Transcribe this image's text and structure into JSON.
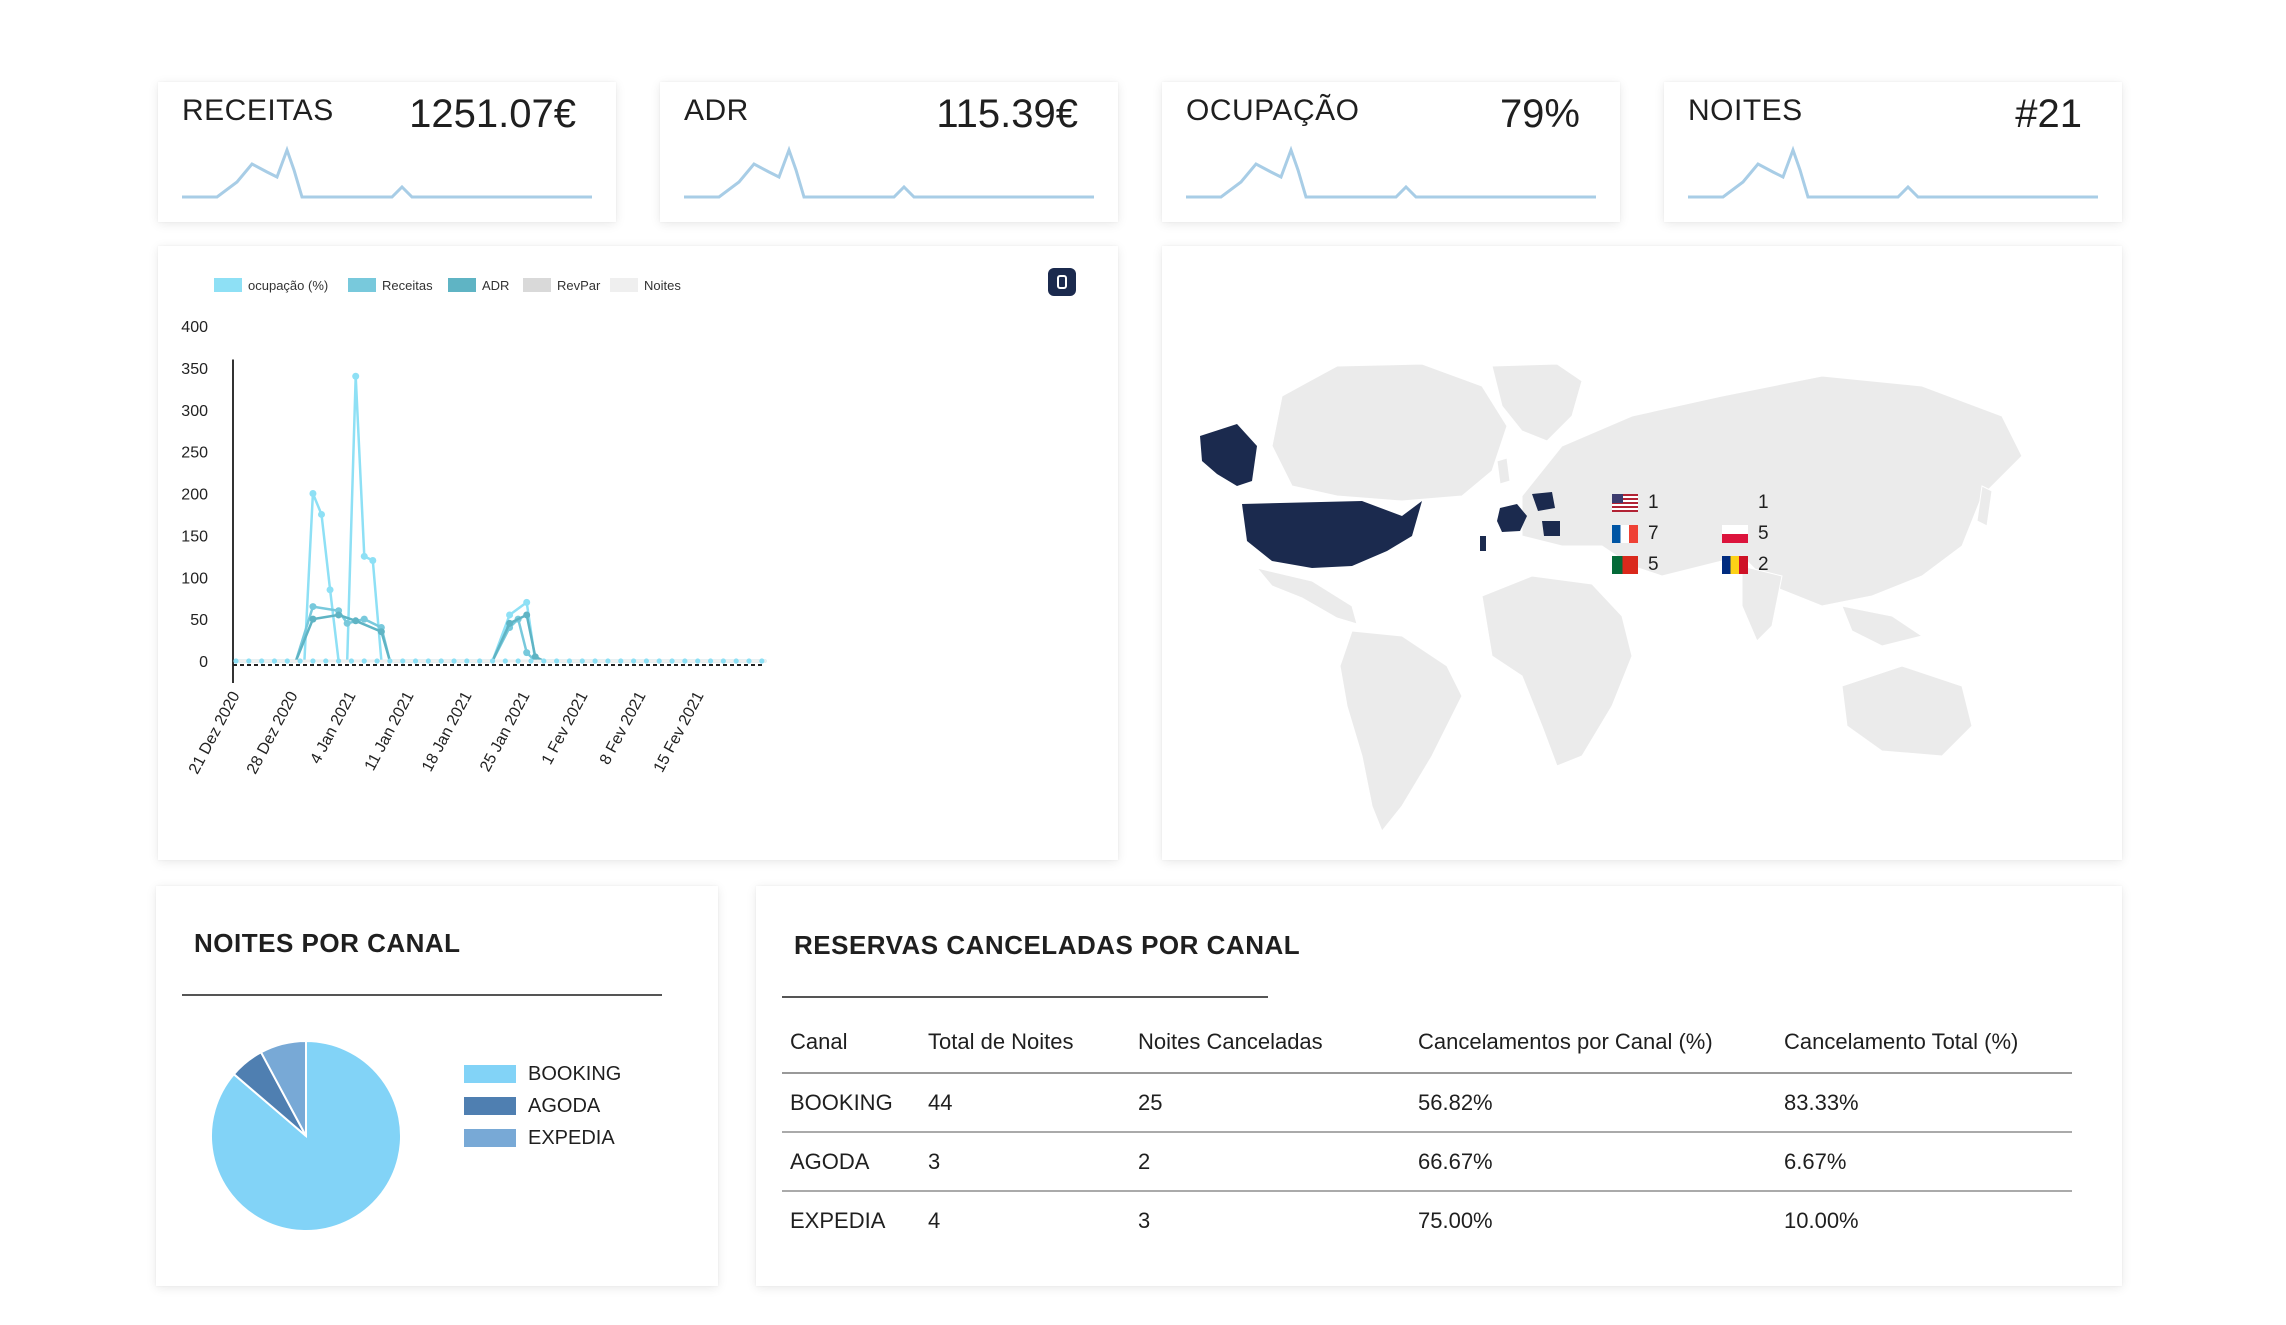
{
  "kpis": [
    {
      "label": "RECEITAS",
      "value": "1251.07€"
    },
    {
      "label": "ADR",
      "value": "115.39€"
    },
    {
      "label": "OCUPAÇÃO",
      "value": "79%"
    },
    {
      "label": "NOITES",
      "value": "#21"
    }
  ],
  "line_chart": {
    "export_icon": "download-icon",
    "colors": [
      "#8ee0f5",
      "#78c9dc",
      "#5fb4c4",
      "#d9d9d9",
      "#efefef"
    ]
  },
  "map": {
    "highlight_color": "#1b2a4e",
    "base_color": "#e9e9e9",
    "legend": [
      {
        "flag": "us-flag",
        "count": "1"
      },
      {
        "flag": "fr-flag",
        "count": "7"
      },
      {
        "flag": "pt-flag",
        "count": "5"
      },
      {
        "flag": "blank-flag",
        "count": "1"
      },
      {
        "flag": "pl-flag",
        "count": "5"
      },
      {
        "flag": "ro-flag",
        "count": "2"
      }
    ]
  },
  "nights_by_channel": {
    "title": "NOITES POR CANAL",
    "colors": [
      "#82d3f7",
      "#4f7fb1",
      "#78a9d6"
    ]
  },
  "cancellations": {
    "title": "RESERVAS CANCELADAS POR CANAL",
    "headers": [
      "Canal",
      "Total de Noites",
      "Noites Canceladas",
      "Cancelamentos por Canal (%)",
      "Cancelamento Total (%)"
    ],
    "rows": [
      [
        "BOOKING",
        "44",
        "25",
        "56.82%",
        "83.33%"
      ],
      [
        "AGODA",
        "3",
        "2",
        "66.67%",
        "6.67%"
      ],
      [
        "EXPEDIA",
        "4",
        "3",
        "75.00%",
        "10.00%"
      ]
    ]
  },
  "chart_data": [
    {
      "type": "line",
      "title": "",
      "xlabel": "",
      "ylabel": "",
      "ylim": [
        0,
        400
      ],
      "yticks": [
        "400",
        "350",
        "300",
        "250",
        "200",
        "150",
        "100",
        "50",
        "0"
      ],
      "xticks": [
        "21 Dez 2020",
        "28 Dez 2020",
        "4 Jan 2021",
        "11 Jan 2021",
        "18 Jan 2021",
        "25 Jan 2021",
        "1 Fev 2021",
        "8 Fev 2021",
        "15 Fev 2021"
      ],
      "x_start": "2020-12-21",
      "legend_position": "top",
      "series": [
        {
          "name": "ocupação (%)",
          "points": [
            [
              "2020-12-21",
              0
            ],
            [
              "2020-12-28",
              0
            ],
            [
              "2020-12-29",
              0
            ],
            [
              "2020-12-30",
              200
            ],
            [
              "2020-12-31",
              175
            ],
            [
              "2021-01-01",
              85
            ],
            [
              "2021-01-02",
              0
            ],
            [
              "2021-01-03",
              0
            ],
            [
              "2021-01-04",
              340
            ],
            [
              "2021-01-05",
              125
            ],
            [
              "2021-01-06",
              120
            ],
            [
              "2021-01-07",
              0
            ],
            [
              "2021-01-20",
              0
            ],
            [
              "2021-01-22",
              55
            ],
            [
              "2021-01-24",
              70
            ],
            [
              "2021-01-25",
              0
            ],
            [
              "2021-02-21",
              0
            ]
          ]
        },
        {
          "name": "Receitas",
          "points": [
            [
              "2020-12-21",
              0
            ],
            [
              "2020-12-28",
              0
            ],
            [
              "2020-12-30",
              65
            ],
            [
              "2021-01-02",
              60
            ],
            [
              "2021-01-03",
              45
            ],
            [
              "2021-01-05",
              50
            ],
            [
              "2021-01-07",
              40
            ],
            [
              "2021-01-08",
              0
            ],
            [
              "2021-01-20",
              0
            ],
            [
              "2021-01-22",
              40
            ],
            [
              "2021-01-23",
              50
            ],
            [
              "2021-01-24",
              10
            ],
            [
              "2021-01-25",
              0
            ],
            [
              "2021-02-21",
              0
            ]
          ]
        },
        {
          "name": "ADR",
          "points": [
            [
              "2020-12-21",
              0
            ],
            [
              "2020-12-28",
              0
            ],
            [
              "2020-12-30",
              50
            ],
            [
              "2021-01-02",
              55
            ],
            [
              "2021-01-04",
              48
            ],
            [
              "2021-01-07",
              35
            ],
            [
              "2021-01-08",
              0
            ],
            [
              "2021-01-20",
              0
            ],
            [
              "2021-01-22",
              45
            ],
            [
              "2021-01-24",
              55
            ],
            [
              "2021-01-25",
              5
            ],
            [
              "2021-01-26",
              0
            ],
            [
              "2021-02-21",
              0
            ]
          ]
        },
        {
          "name": "RevPar",
          "points": [
            [
              "2020-12-21",
              0
            ],
            [
              "2021-02-21",
              0
            ]
          ]
        },
        {
          "name": "Noites",
          "points": [
            [
              "2020-12-21",
              0
            ],
            [
              "2021-02-21",
              0
            ]
          ]
        }
      ]
    },
    {
      "type": "pie",
      "title": "NOITES POR CANAL",
      "categories": [
        "BOOKING",
        "AGODA",
        "EXPEDIA"
      ],
      "values": [
        44,
        3,
        4
      ]
    }
  ]
}
